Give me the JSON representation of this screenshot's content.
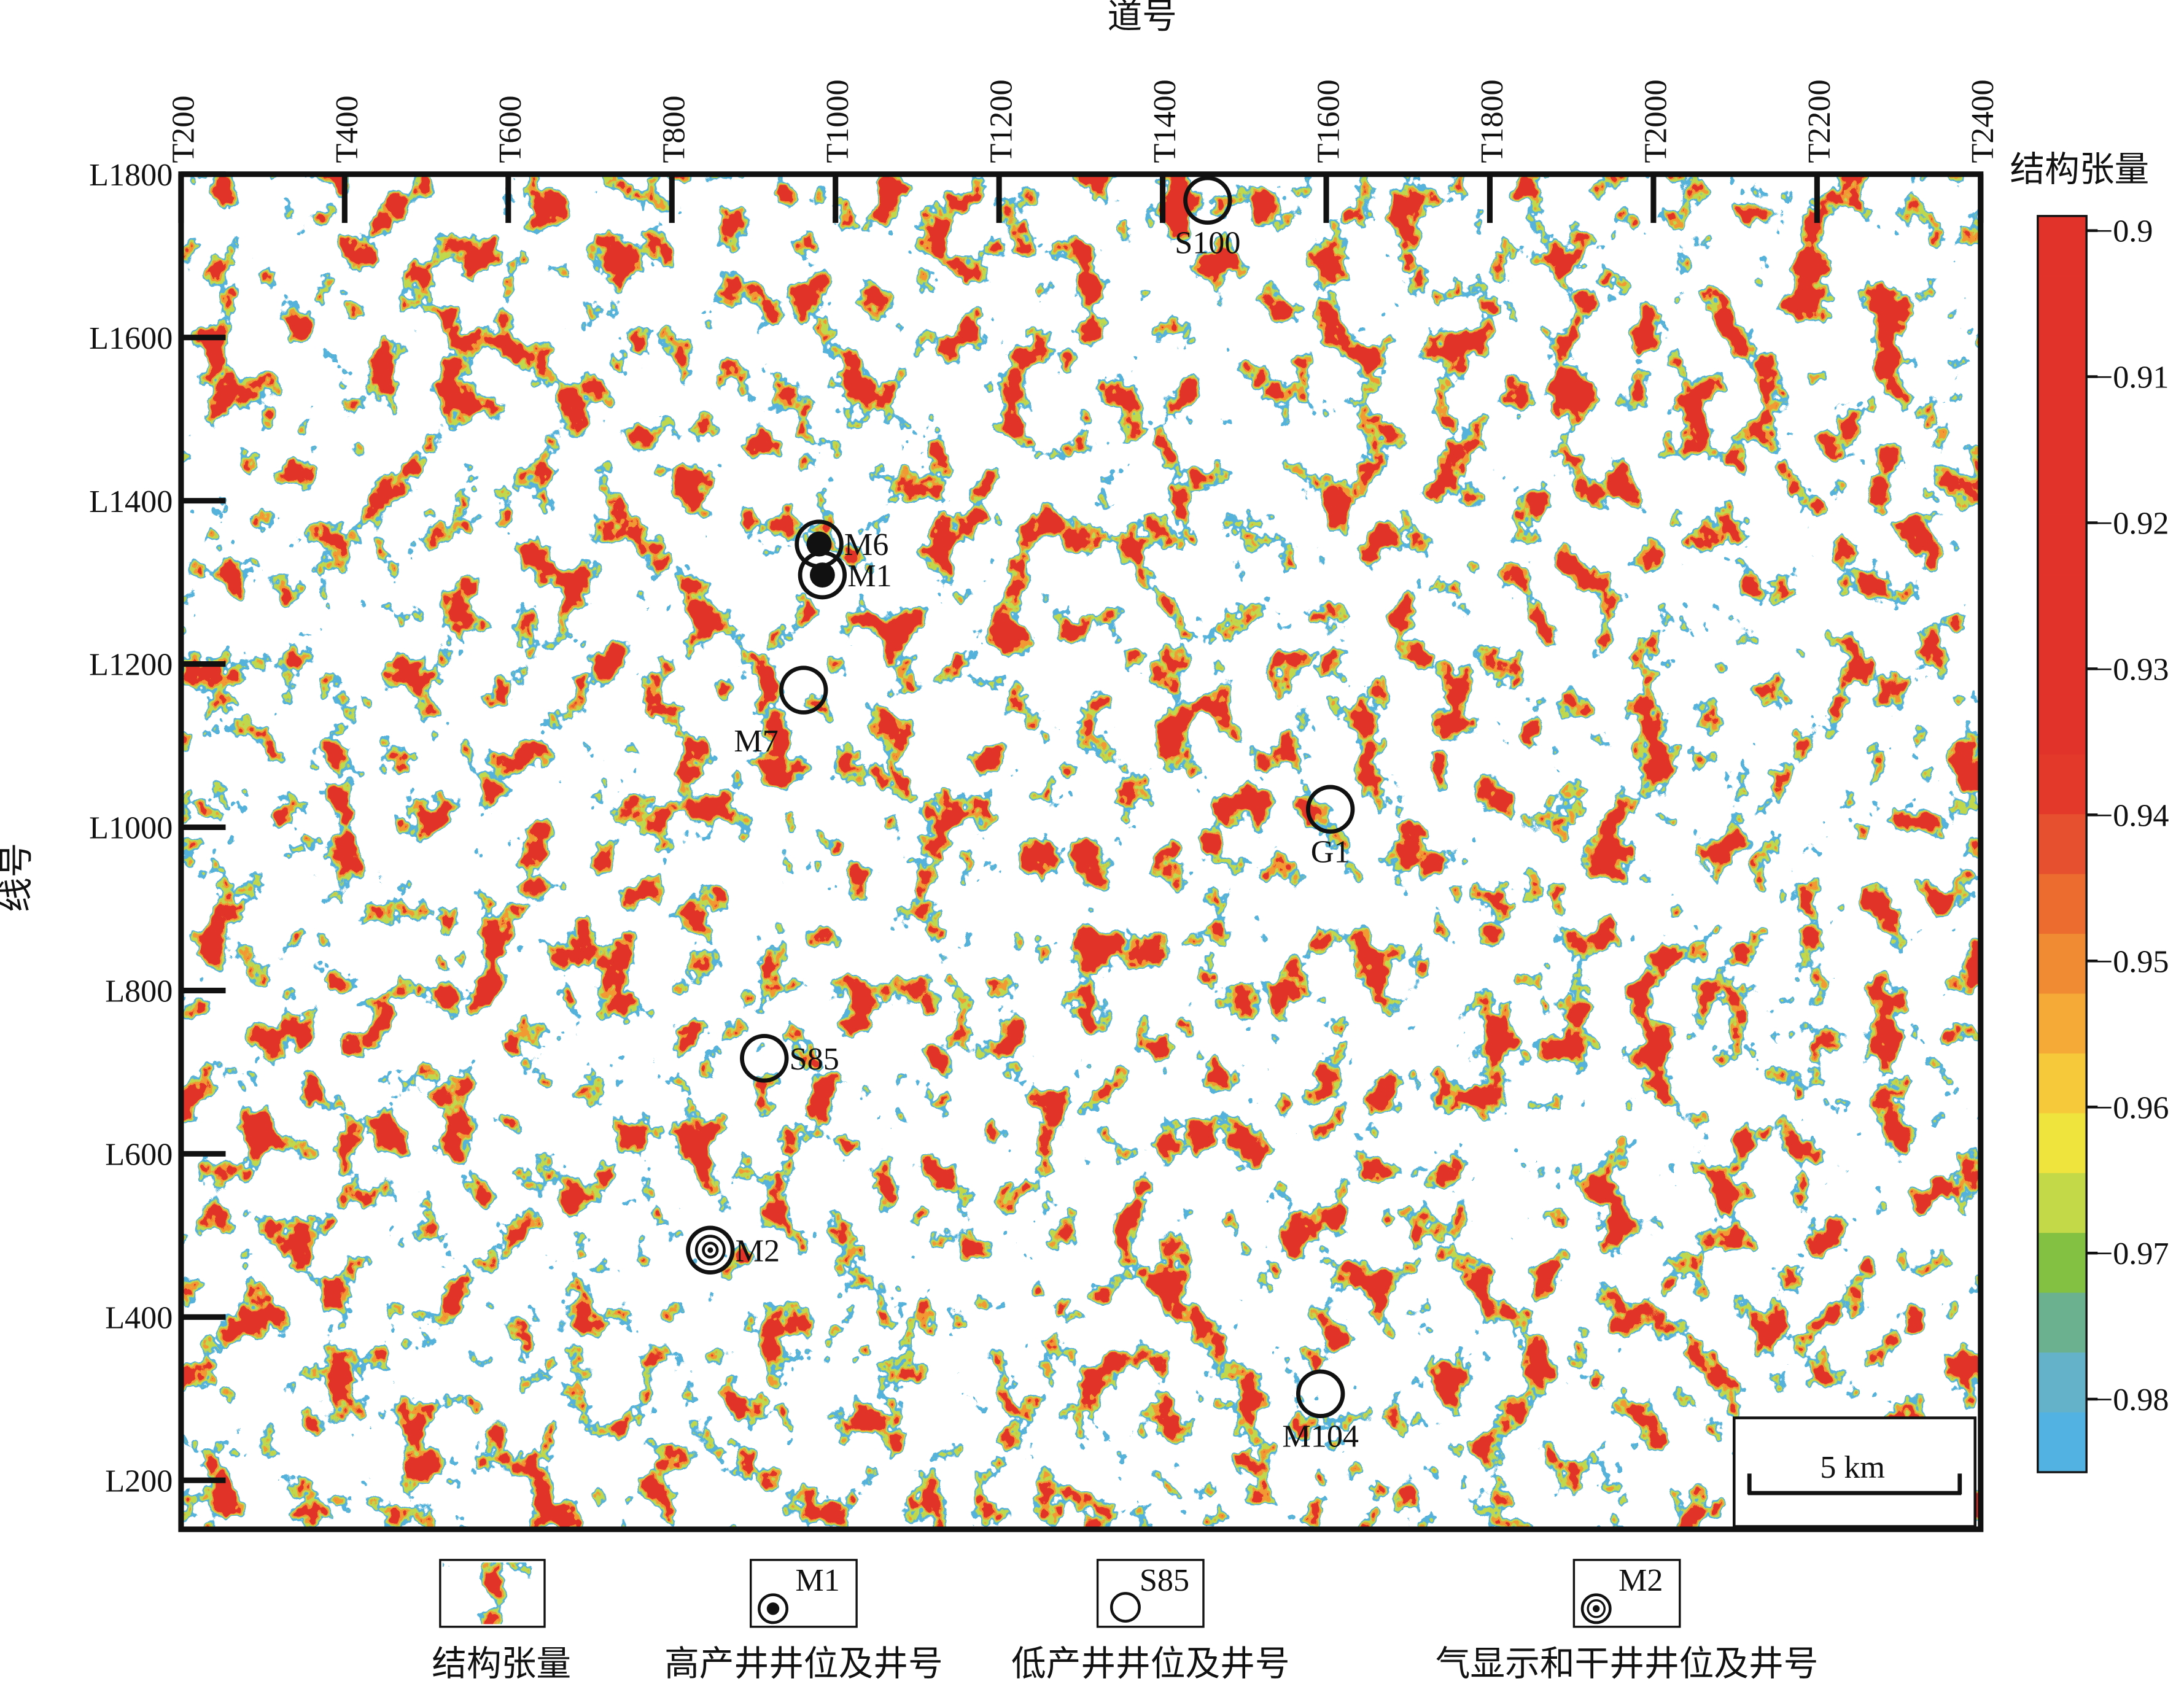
{
  "chart_data": {
    "type": "map",
    "x_label": "道号",
    "y_label": "线号",
    "xlim": [
      200,
      2400
    ],
    "ylim": [
      140,
      1800
    ],
    "xticks": [
      {
        "value": 200,
        "label": "T200"
      },
      {
        "value": 400,
        "label": "T400"
      },
      {
        "value": 600,
        "label": "T600"
      },
      {
        "value": 800,
        "label": "T800"
      },
      {
        "value": 1000,
        "label": "T1000"
      },
      {
        "value": 1200,
        "label": "T1200"
      },
      {
        "value": 1400,
        "label": "T1400"
      },
      {
        "value": 1600,
        "label": "T1600"
      },
      {
        "value": 1800,
        "label": "T1800"
      },
      {
        "value": 2000,
        "label": "T2000"
      },
      {
        "value": 2200,
        "label": "T2200"
      },
      {
        "value": 2400,
        "label": "T2400"
      }
    ],
    "yticks": [
      {
        "value": 200,
        "label": "L200"
      },
      {
        "value": 400,
        "label": "L400"
      },
      {
        "value": 600,
        "label": "L600"
      },
      {
        "value": 800,
        "label": "L800"
      },
      {
        "value": 1000,
        "label": "L1000"
      },
      {
        "value": 1200,
        "label": "L1200"
      },
      {
        "value": 1400,
        "label": "L1400"
      },
      {
        "value": 1600,
        "label": "L1600"
      },
      {
        "value": 1800,
        "label": "L1800"
      }
    ],
    "colorbar": {
      "title": "结构张量",
      "lim": [
        -0.985,
        -0.899
      ],
      "ticks": [
        {
          "value": -0.9,
          "label": "−0.9"
        },
        {
          "value": -0.91,
          "label": "−0.91"
        },
        {
          "value": -0.92,
          "label": "−0.92"
        },
        {
          "value": -0.93,
          "label": "−0.93"
        },
        {
          "value": -0.94,
          "label": "−0.94"
        },
        {
          "value": -0.95,
          "label": "−0.95"
        },
        {
          "value": -0.96,
          "label": "−0.96"
        },
        {
          "value": -0.97,
          "label": "−0.97"
        },
        {
          "value": -0.98,
          "label": "−0.98"
        }
      ],
      "colors": [
        "#e2332a",
        "#e2332a",
        "#e2332a",
        "#e2332a",
        "#e2332a",
        "#e2332a",
        "#e2332a",
        "#e2332a",
        "#e2332a",
        "#e3392b",
        "#e6502e",
        "#ec6c30",
        "#f08a33",
        "#f5a936",
        "#f6c93a",
        "#efe33e",
        "#c3d948",
        "#82c141",
        "#6bb18f",
        "#63b2c9",
        "#52b3e2"
      ]
    },
    "scale_bar": "5 km",
    "series": [
      {
        "name": "高产井井位及井号",
        "sample": "M1",
        "marker": "dot",
        "points": [
          "M6",
          "M1"
        ],
        "x": [
          980,
          984
        ],
        "y": [
          1347,
          1309
        ],
        "label_pos": [
          "right",
          "right"
        ]
      },
      {
        "name": "低产井井位及井号",
        "sample": "S85",
        "marker": "circle",
        "points": [
          "M7",
          "S100",
          "G1",
          "S85",
          "M104"
        ],
        "x": [
          961,
          1455,
          1605,
          913,
          1593
        ],
        "y": [
          1168,
          1768,
          1022,
          717,
          306
        ],
        "label_pos": [
          "below-left",
          "below",
          "below",
          "right",
          "below"
        ]
      },
      {
        "name": "气显示和干井井位及井号",
        "sample": "M2",
        "marker": "ring",
        "points": [
          "M2"
        ],
        "x": [
          847
        ],
        "y": [
          482
        ],
        "label_pos": [
          "right"
        ]
      }
    ]
  }
}
